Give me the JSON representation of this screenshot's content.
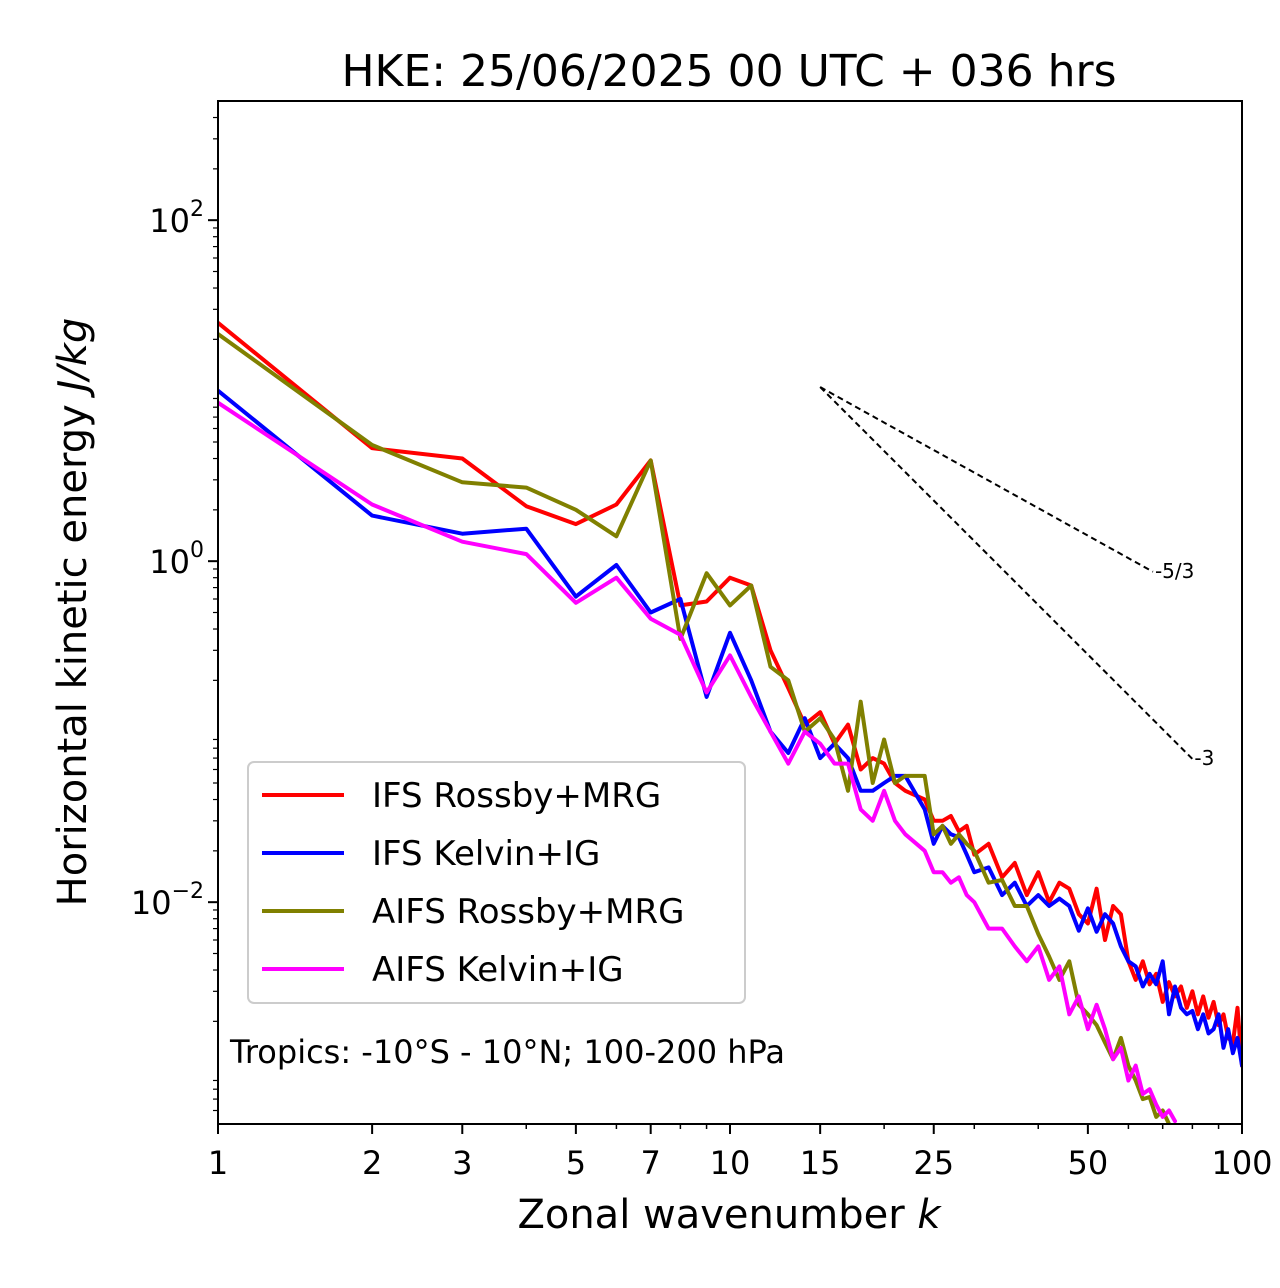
{
  "chart_data": {
    "type": "line",
    "title": "HKE: 25/06/2025 00 UTC + 036 hrs",
    "xlabel_text": "Zonal wavenumber ",
    "xlabel_var": "k",
    "ylabel_text": "Horizontal kinetic energy ",
    "ylabel_unit": "J/kg",
    "x_scale": "log",
    "y_scale": "log",
    "xlim": [
      1,
      100
    ],
    "ylim": [
      0.0005,
      500
    ],
    "x_ticks": [
      1,
      2,
      3,
      5,
      7,
      10,
      15,
      25,
      50,
      100
    ],
    "x_tick_labels": [
      "1",
      "2",
      "3",
      "5",
      "7",
      "10",
      "15",
      "25",
      "50",
      "100"
    ],
    "y_ticks": [
      {
        "value": 100,
        "base": "10",
        "exp": "2"
      },
      {
        "value": 1,
        "base": "10",
        "exp": "0"
      },
      {
        "value": 0.01,
        "base": "10",
        "exp": "−2"
      }
    ],
    "legend_position": "lower-left",
    "annotation": "Tropics: -10°S - 10°N; 100-200 hPa",
    "reference_slopes": [
      {
        "label": "-5/3",
        "exponent": -1.6667,
        "x_start": 15,
        "y_start": 10.5,
        "x_end": 67
      },
      {
        "label": "-3",
        "exponent": -3,
        "x_start": 15,
        "y_start": 10.5,
        "x_end": 80
      }
    ],
    "series": [
      {
        "name": "IFS Rossby+MRG",
        "color": "#ff0000",
        "points": [
          [
            1,
            25
          ],
          [
            2,
            4.6
          ],
          [
            3,
            4.0
          ],
          [
            4,
            2.1
          ],
          [
            5,
            1.65
          ],
          [
            6,
            2.15
          ],
          [
            7,
            3.9
          ],
          [
            8,
            0.55
          ],
          [
            9,
            0.58
          ],
          [
            10,
            0.8
          ],
          [
            11,
            0.72
          ],
          [
            12,
            0.3
          ],
          [
            13,
            0.18
          ],
          [
            14,
            0.11
          ],
          [
            15,
            0.13
          ],
          [
            16,
            0.085
          ],
          [
            17,
            0.11
          ],
          [
            18,
            0.06
          ],
          [
            19,
            0.07
          ],
          [
            20,
            0.065
          ],
          [
            21,
            0.05
          ],
          [
            22,
            0.045
          ],
          [
            24,
            0.04
          ],
          [
            25,
            0.03
          ],
          [
            26,
            0.03
          ],
          [
            27,
            0.032
          ],
          [
            28,
            0.026
          ],
          [
            29,
            0.028
          ],
          [
            30,
            0.019
          ],
          [
            32,
            0.022
          ],
          [
            34,
            0.014
          ],
          [
            36,
            0.017
          ],
          [
            38,
            0.011
          ],
          [
            40,
            0.015
          ],
          [
            42,
            0.01
          ],
          [
            44,
            0.013
          ],
          [
            46,
            0.012
          ],
          [
            48,
            0.0085
          ],
          [
            50,
            0.0075
          ],
          [
            52,
            0.012
          ],
          [
            54,
            0.006
          ],
          [
            56,
            0.0095
          ],
          [
            58,
            0.0085
          ],
          [
            60,
            0.0045
          ],
          [
            62,
            0.0035
          ],
          [
            64,
            0.0045
          ],
          [
            66,
            0.0033
          ],
          [
            68,
            0.0038
          ],
          [
            70,
            0.0026
          ],
          [
            72,
            0.0034
          ],
          [
            74,
            0.0028
          ],
          [
            76,
            0.0032
          ],
          [
            78,
            0.0024
          ],
          [
            80,
            0.003
          ],
          [
            82,
            0.0022
          ],
          [
            84,
            0.0028
          ],
          [
            86,
            0.0021
          ],
          [
            88,
            0.0026
          ],
          [
            90,
            0.0019
          ],
          [
            92,
            0.0022
          ],
          [
            94,
            0.0016
          ],
          [
            96,
            0.0015
          ],
          [
            98,
            0.0024
          ],
          [
            100,
            0.0011
          ]
        ]
      },
      {
        "name": "IFS Kelvin+IG",
        "color": "#0000ff",
        "points": [
          [
            1,
            10
          ],
          [
            2,
            1.85
          ],
          [
            3,
            1.45
          ],
          [
            4,
            1.55
          ],
          [
            5,
            0.62
          ],
          [
            6,
            0.95
          ],
          [
            7,
            0.5
          ],
          [
            8,
            0.6
          ],
          [
            9,
            0.16
          ],
          [
            10,
            0.38
          ],
          [
            11,
            0.2
          ],
          [
            12,
            0.1
          ],
          [
            13,
            0.075
          ],
          [
            14,
            0.12
          ],
          [
            15,
            0.07
          ],
          [
            16,
            0.085
          ],
          [
            17,
            0.07
          ],
          [
            18,
            0.045
          ],
          [
            19,
            0.045
          ],
          [
            20,
            0.05
          ],
          [
            21,
            0.055
          ],
          [
            22,
            0.055
          ],
          [
            24,
            0.035
          ],
          [
            25,
            0.022
          ],
          [
            26,
            0.028
          ],
          [
            27,
            0.025
          ],
          [
            28,
            0.024
          ],
          [
            29,
            0.019
          ],
          [
            30,
            0.015
          ],
          [
            32,
            0.016
          ],
          [
            34,
            0.011
          ],
          [
            36,
            0.013
          ],
          [
            38,
            0.0095
          ],
          [
            40,
            0.011
          ],
          [
            42,
            0.0095
          ],
          [
            44,
            0.0105
          ],
          [
            46,
            0.0095
          ],
          [
            48,
            0.0068
          ],
          [
            50,
            0.0092
          ],
          [
            52,
            0.0067
          ],
          [
            54,
            0.0085
          ],
          [
            56,
            0.0075
          ],
          [
            58,
            0.0055
          ],
          [
            60,
            0.0045
          ],
          [
            62,
            0.0042
          ],
          [
            64,
            0.0032
          ],
          [
            66,
            0.0038
          ],
          [
            68,
            0.0033
          ],
          [
            70,
            0.0045
          ],
          [
            72,
            0.0022
          ],
          [
            74,
            0.0032
          ],
          [
            76,
            0.0024
          ],
          [
            78,
            0.0022
          ],
          [
            80,
            0.0023
          ],
          [
            82,
            0.0018
          ],
          [
            84,
            0.0022
          ],
          [
            86,
            0.0017
          ],
          [
            88,
            0.0018
          ],
          [
            90,
            0.0022
          ],
          [
            92,
            0.0014
          ],
          [
            94,
            0.0018
          ],
          [
            96,
            0.0013
          ],
          [
            98,
            0.0016
          ],
          [
            100,
            0.0011
          ]
        ]
      },
      {
        "name": "AIFS Rossby+MRG",
        "color": "#808000",
        "points": [
          [
            1,
            21.5
          ],
          [
            2,
            4.8
          ],
          [
            3,
            2.9
          ],
          [
            4,
            2.7
          ],
          [
            5,
            2.0
          ],
          [
            6,
            1.4
          ],
          [
            7,
            3.9
          ],
          [
            8,
            0.35
          ],
          [
            9,
            0.85
          ],
          [
            10,
            0.55
          ],
          [
            11,
            0.72
          ],
          [
            12,
            0.24
          ],
          [
            13,
            0.2
          ],
          [
            14,
            0.1
          ],
          [
            15,
            0.12
          ],
          [
            16,
            0.09
          ],
          [
            17,
            0.045
          ],
          [
            18,
            0.15
          ],
          [
            19,
            0.05
          ],
          [
            20,
            0.09
          ],
          [
            21,
            0.05
          ],
          [
            22,
            0.055
          ],
          [
            24,
            0.055
          ],
          [
            25,
            0.025
          ],
          [
            26,
            0.028
          ],
          [
            27,
            0.022
          ],
          [
            28,
            0.025
          ],
          [
            29,
            0.022
          ],
          [
            30,
            0.02
          ],
          [
            32,
            0.013
          ],
          [
            34,
            0.0135
          ],
          [
            36,
            0.0095
          ],
          [
            38,
            0.0095
          ],
          [
            40,
            0.0065
          ],
          [
            42,
            0.0048
          ],
          [
            44,
            0.0035
          ],
          [
            46,
            0.0045
          ],
          [
            48,
            0.0025
          ],
          [
            50,
            0.0022
          ],
          [
            52,
            0.0019
          ],
          [
            54,
            0.0015
          ],
          [
            56,
            0.0012
          ],
          [
            58,
            0.0016
          ],
          [
            60,
            0.0011
          ],
          [
            62,
            0.0009
          ],
          [
            64,
            0.0007
          ],
          [
            66,
            0.00072
          ],
          [
            68,
            0.00055
          ],
          [
            70,
            0.0006
          ],
          [
            72,
            0.0005
          ]
        ]
      },
      {
        "name": "AIFS Kelvin+IG",
        "color": "#ff00ff",
        "points": [
          [
            1,
            8.5
          ],
          [
            2,
            2.15
          ],
          [
            3,
            1.3
          ],
          [
            4,
            1.1
          ],
          [
            5,
            0.57
          ],
          [
            6,
            0.8
          ],
          [
            7,
            0.46
          ],
          [
            8,
            0.37
          ],
          [
            9,
            0.17
          ],
          [
            10,
            0.28
          ],
          [
            11,
            0.16
          ],
          [
            12,
            0.1
          ],
          [
            13,
            0.065
          ],
          [
            14,
            0.1
          ],
          [
            15,
            0.085
          ],
          [
            16,
            0.065
          ],
          [
            17,
            0.065
          ],
          [
            18,
            0.035
          ],
          [
            19,
            0.03
          ],
          [
            20,
            0.045
          ],
          [
            21,
            0.03
          ],
          [
            22,
            0.025
          ],
          [
            24,
            0.02
          ],
          [
            25,
            0.015
          ],
          [
            26,
            0.015
          ],
          [
            27,
            0.013
          ],
          [
            28,
            0.014
          ],
          [
            29,
            0.011
          ],
          [
            30,
            0.01
          ],
          [
            32,
            0.007
          ],
          [
            34,
            0.007
          ],
          [
            36,
            0.0055
          ],
          [
            38,
            0.0045
          ],
          [
            40,
            0.0055
          ],
          [
            42,
            0.0035
          ],
          [
            44,
            0.0042
          ],
          [
            46,
            0.0022
          ],
          [
            48,
            0.0028
          ],
          [
            50,
            0.0018
          ],
          [
            52,
            0.0025
          ],
          [
            54,
            0.0018
          ],
          [
            56,
            0.0012
          ],
          [
            58,
            0.0014
          ],
          [
            60,
            0.0009
          ],
          [
            62,
            0.0011
          ],
          [
            64,
            0.00075
          ],
          [
            66,
            0.0008
          ],
          [
            68,
            0.00065
          ],
          [
            70,
            0.00055
          ],
          [
            72,
            0.0006
          ],
          [
            74,
            0.00052
          ]
        ]
      }
    ]
  }
}
